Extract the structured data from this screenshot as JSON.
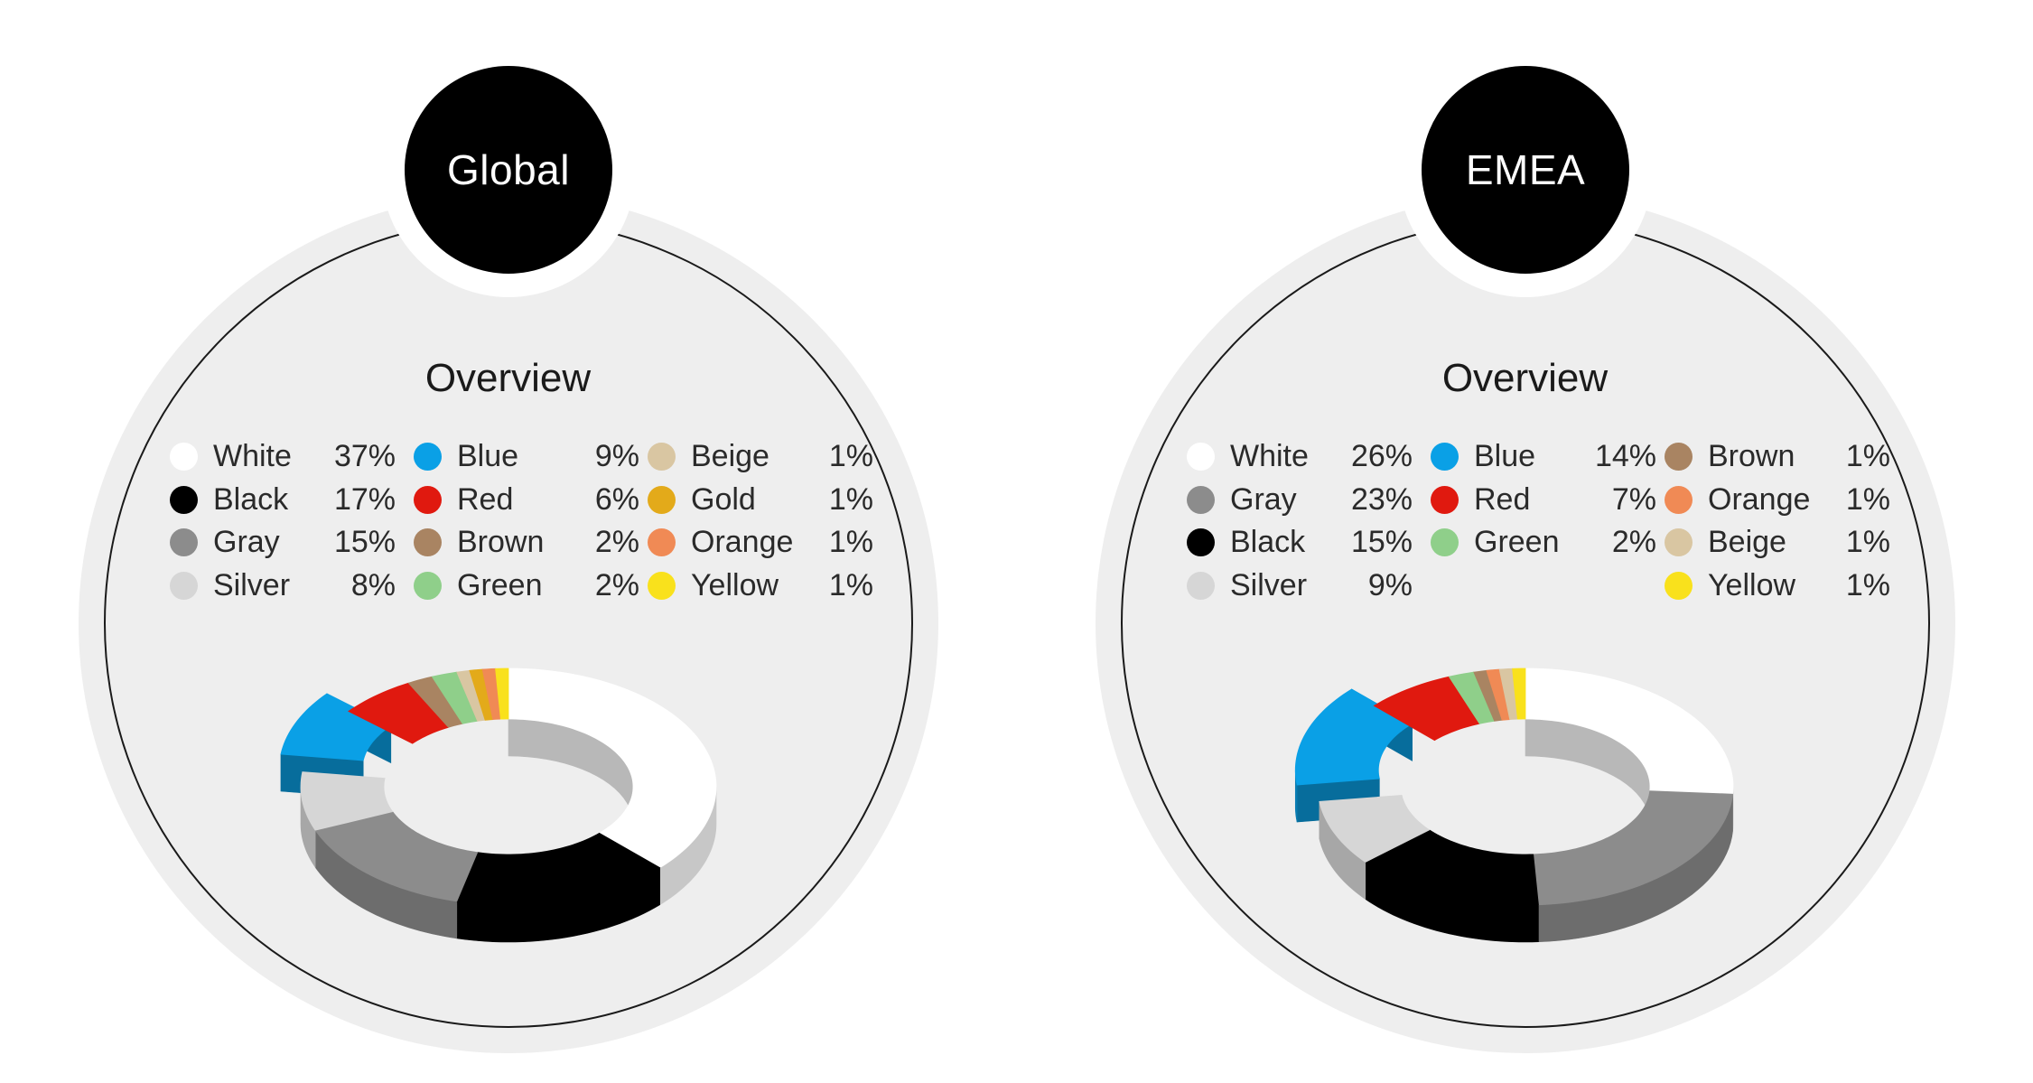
{
  "chart_data": [
    {
      "type": "pie",
      "badge": "Global",
      "title": "Overview",
      "legend_columns": [
        [
          {
            "name": "White",
            "value": "37%",
            "color": "#ffffff"
          },
          {
            "name": "Black",
            "value": "17%",
            "color": "#000000"
          },
          {
            "name": "Gray",
            "value": "15%",
            "color": "#8c8c8c"
          },
          {
            "name": "Silver",
            "value": "8%",
            "color": "#d6d6d6"
          }
        ],
        [
          {
            "name": "Blue",
            "value": "9%",
            "color": "#0aa0e6"
          },
          {
            "name": "Red",
            "value": "6%",
            "color": "#e0190f"
          },
          {
            "name": "Brown",
            "value": "2%",
            "color": "#a98462"
          },
          {
            "name": "Green",
            "value": "2%",
            "color": "#8fcf8a"
          }
        ],
        [
          {
            "name": "Beige",
            "value": "1%",
            "color": "#d9c6a2"
          },
          {
            "name": "Gold",
            "value": "1%",
            "color": "#e3aa1a"
          },
          {
            "name": "Orange",
            "value": "1%",
            "color": "#f08a55"
          },
          {
            "name": "Yellow",
            "value": "1%",
            "color": "#f9e11c"
          }
        ]
      ],
      "slices": [
        {
          "name": "White",
          "value": 37
        },
        {
          "name": "Black",
          "value": 17
        },
        {
          "name": "Gray",
          "value": 15
        },
        {
          "name": "Silver",
          "value": 8
        },
        {
          "name": "Blue",
          "value": 9
        },
        {
          "name": "Red",
          "value": 6
        },
        {
          "name": "Brown",
          "value": 2
        },
        {
          "name": "Green",
          "value": 2
        },
        {
          "name": "Beige",
          "value": 1
        },
        {
          "name": "Gold",
          "value": 1
        },
        {
          "name": "Orange",
          "value": 1
        },
        {
          "name": "Yellow",
          "value": 1
        }
      ],
      "pulled_out_slice": "Blue"
    },
    {
      "type": "pie",
      "badge": "EMEA",
      "title": "Overview",
      "legend_columns": [
        [
          {
            "name": "White",
            "value": "26%",
            "color": "#ffffff"
          },
          {
            "name": "Gray",
            "value": "23%",
            "color": "#8c8c8c"
          },
          {
            "name": "Black",
            "value": "15%",
            "color": "#000000"
          },
          {
            "name": "Silver",
            "value": "9%",
            "color": "#d6d6d6"
          }
        ],
        [
          {
            "name": "Blue",
            "value": "14%",
            "color": "#0aa0e6"
          },
          {
            "name": "Red",
            "value": "7%",
            "color": "#e0190f"
          },
          {
            "name": "Green",
            "value": "2%",
            "color": "#8fcf8a"
          }
        ],
        [
          {
            "name": "Brown",
            "value": "1%",
            "color": "#a98462"
          },
          {
            "name": "Orange",
            "value": "1%",
            "color": "#f08a55"
          },
          {
            "name": "Beige",
            "value": "1%",
            "color": "#d9c6a2"
          },
          {
            "name": "Yellow",
            "value": "1%",
            "color": "#f9e11c"
          }
        ]
      ],
      "slices": [
        {
          "name": "White",
          "value": 26
        },
        {
          "name": "Gray",
          "value": 23
        },
        {
          "name": "Black",
          "value": 15
        },
        {
          "name": "Silver",
          "value": 9
        },
        {
          "name": "Blue",
          "value": 14
        },
        {
          "name": "Red",
          "value": 7
        },
        {
          "name": "Green",
          "value": 2
        },
        {
          "name": "Brown",
          "value": 1
        },
        {
          "name": "Orange",
          "value": 1
        },
        {
          "name": "Beige",
          "value": 1
        },
        {
          "name": "Yellow",
          "value": 1
        }
      ],
      "pulled_out_slice": "Blue"
    }
  ]
}
